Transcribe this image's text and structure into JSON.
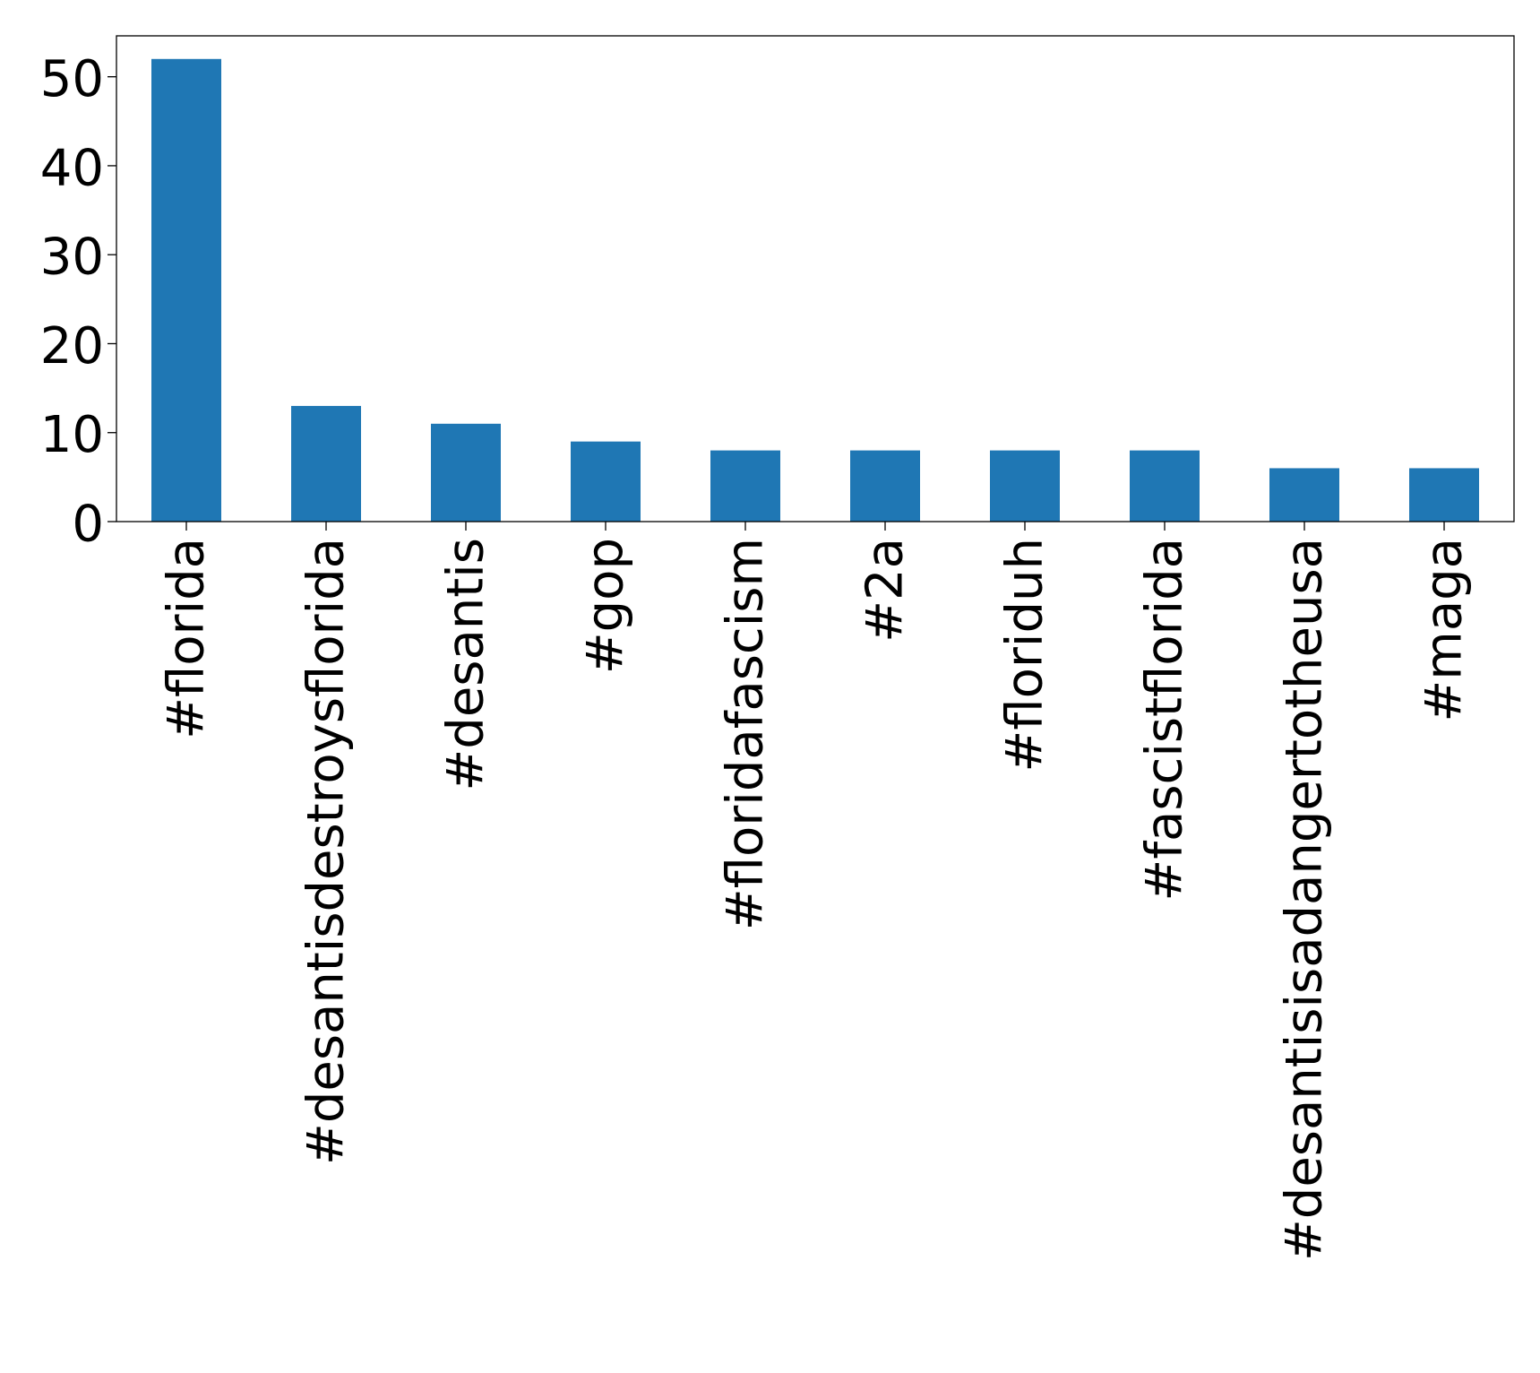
{
  "chart_data": {
    "type": "bar",
    "title": "",
    "xlabel": "",
    "ylabel": "",
    "categories": [
      "#florida",
      "#desantisdestroysflorida",
      "#desantis",
      "#gop",
      "#floridafascism",
      "#2a",
      "#floriduh",
      "#fascistflorida",
      "#desantisisadangertotheusa",
      "#maga"
    ],
    "values": [
      52,
      13,
      11,
      9,
      8,
      8,
      8,
      8,
      6,
      6
    ],
    "ylim": [
      0,
      54.6
    ],
    "yticks": [
      0,
      10,
      20,
      30,
      40,
      50
    ],
    "ytick_labels": [
      "0",
      "10",
      "20",
      "30",
      "40",
      "50"
    ],
    "bar_color": "#1f77b4",
    "grid": false,
    "legend": "none",
    "xtick_rotation": "vertical"
  }
}
